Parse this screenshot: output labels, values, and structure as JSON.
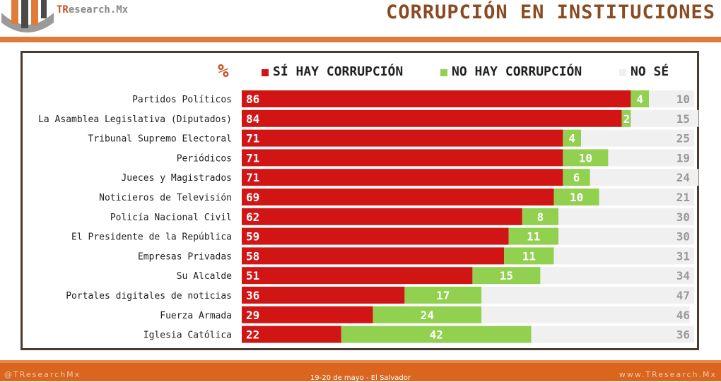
{
  "header": {
    "brand_prefix": "TR",
    "brand_rest": "esearch.Mx",
    "title": "CORRUPCIÓN EN INSTITUCIONES"
  },
  "colors": {
    "si": "#d11515",
    "no": "#92d050",
    "ns": "#f0f0f0",
    "accent": "#e07b39"
  },
  "chart_data": {
    "type": "bar",
    "orientation": "horizontal",
    "stacked": true,
    "unit_label": "%",
    "categories": [
      "Partidos Políticos",
      "La Asamblea Legislativa (Diputados)",
      "Tribunal Supremo Electoral",
      "Periódicos",
      "Jueces y Magistrados",
      "Noticieros de Televisión",
      "Policía Nacional Civil",
      "El Presidente de la República",
      "Empresas Privadas",
      "Su Alcalde",
      "Portales digitales de noticias",
      "Fuerza Armada",
      "Iglesia Católica"
    ],
    "series": [
      {
        "name": "SÍ HAY CORRUPCIÓN",
        "color": "#d11515",
        "values": [
          86,
          84,
          71,
          71,
          71,
          69,
          62,
          59,
          58,
          51,
          36,
          29,
          22
        ]
      },
      {
        "name": "NO HAY CORRUPCIÓN",
        "color": "#92d050",
        "values": [
          4,
          2,
          4,
          10,
          6,
          10,
          8,
          11,
          11,
          15,
          17,
          24,
          42
        ]
      },
      {
        "name": "NO SÉ",
        "color": "#f0f0f0",
        "values": [
          10,
          15,
          25,
          19,
          24,
          21,
          30,
          30,
          31,
          34,
          47,
          46,
          36
        ]
      }
    ],
    "xlim": [
      0,
      100
    ],
    "legend": "top"
  },
  "footer": {
    "left": "@TResearchMx",
    "center": "19-20 de mayo - El Salvador",
    "right": "www.TResearch.Mx"
  }
}
